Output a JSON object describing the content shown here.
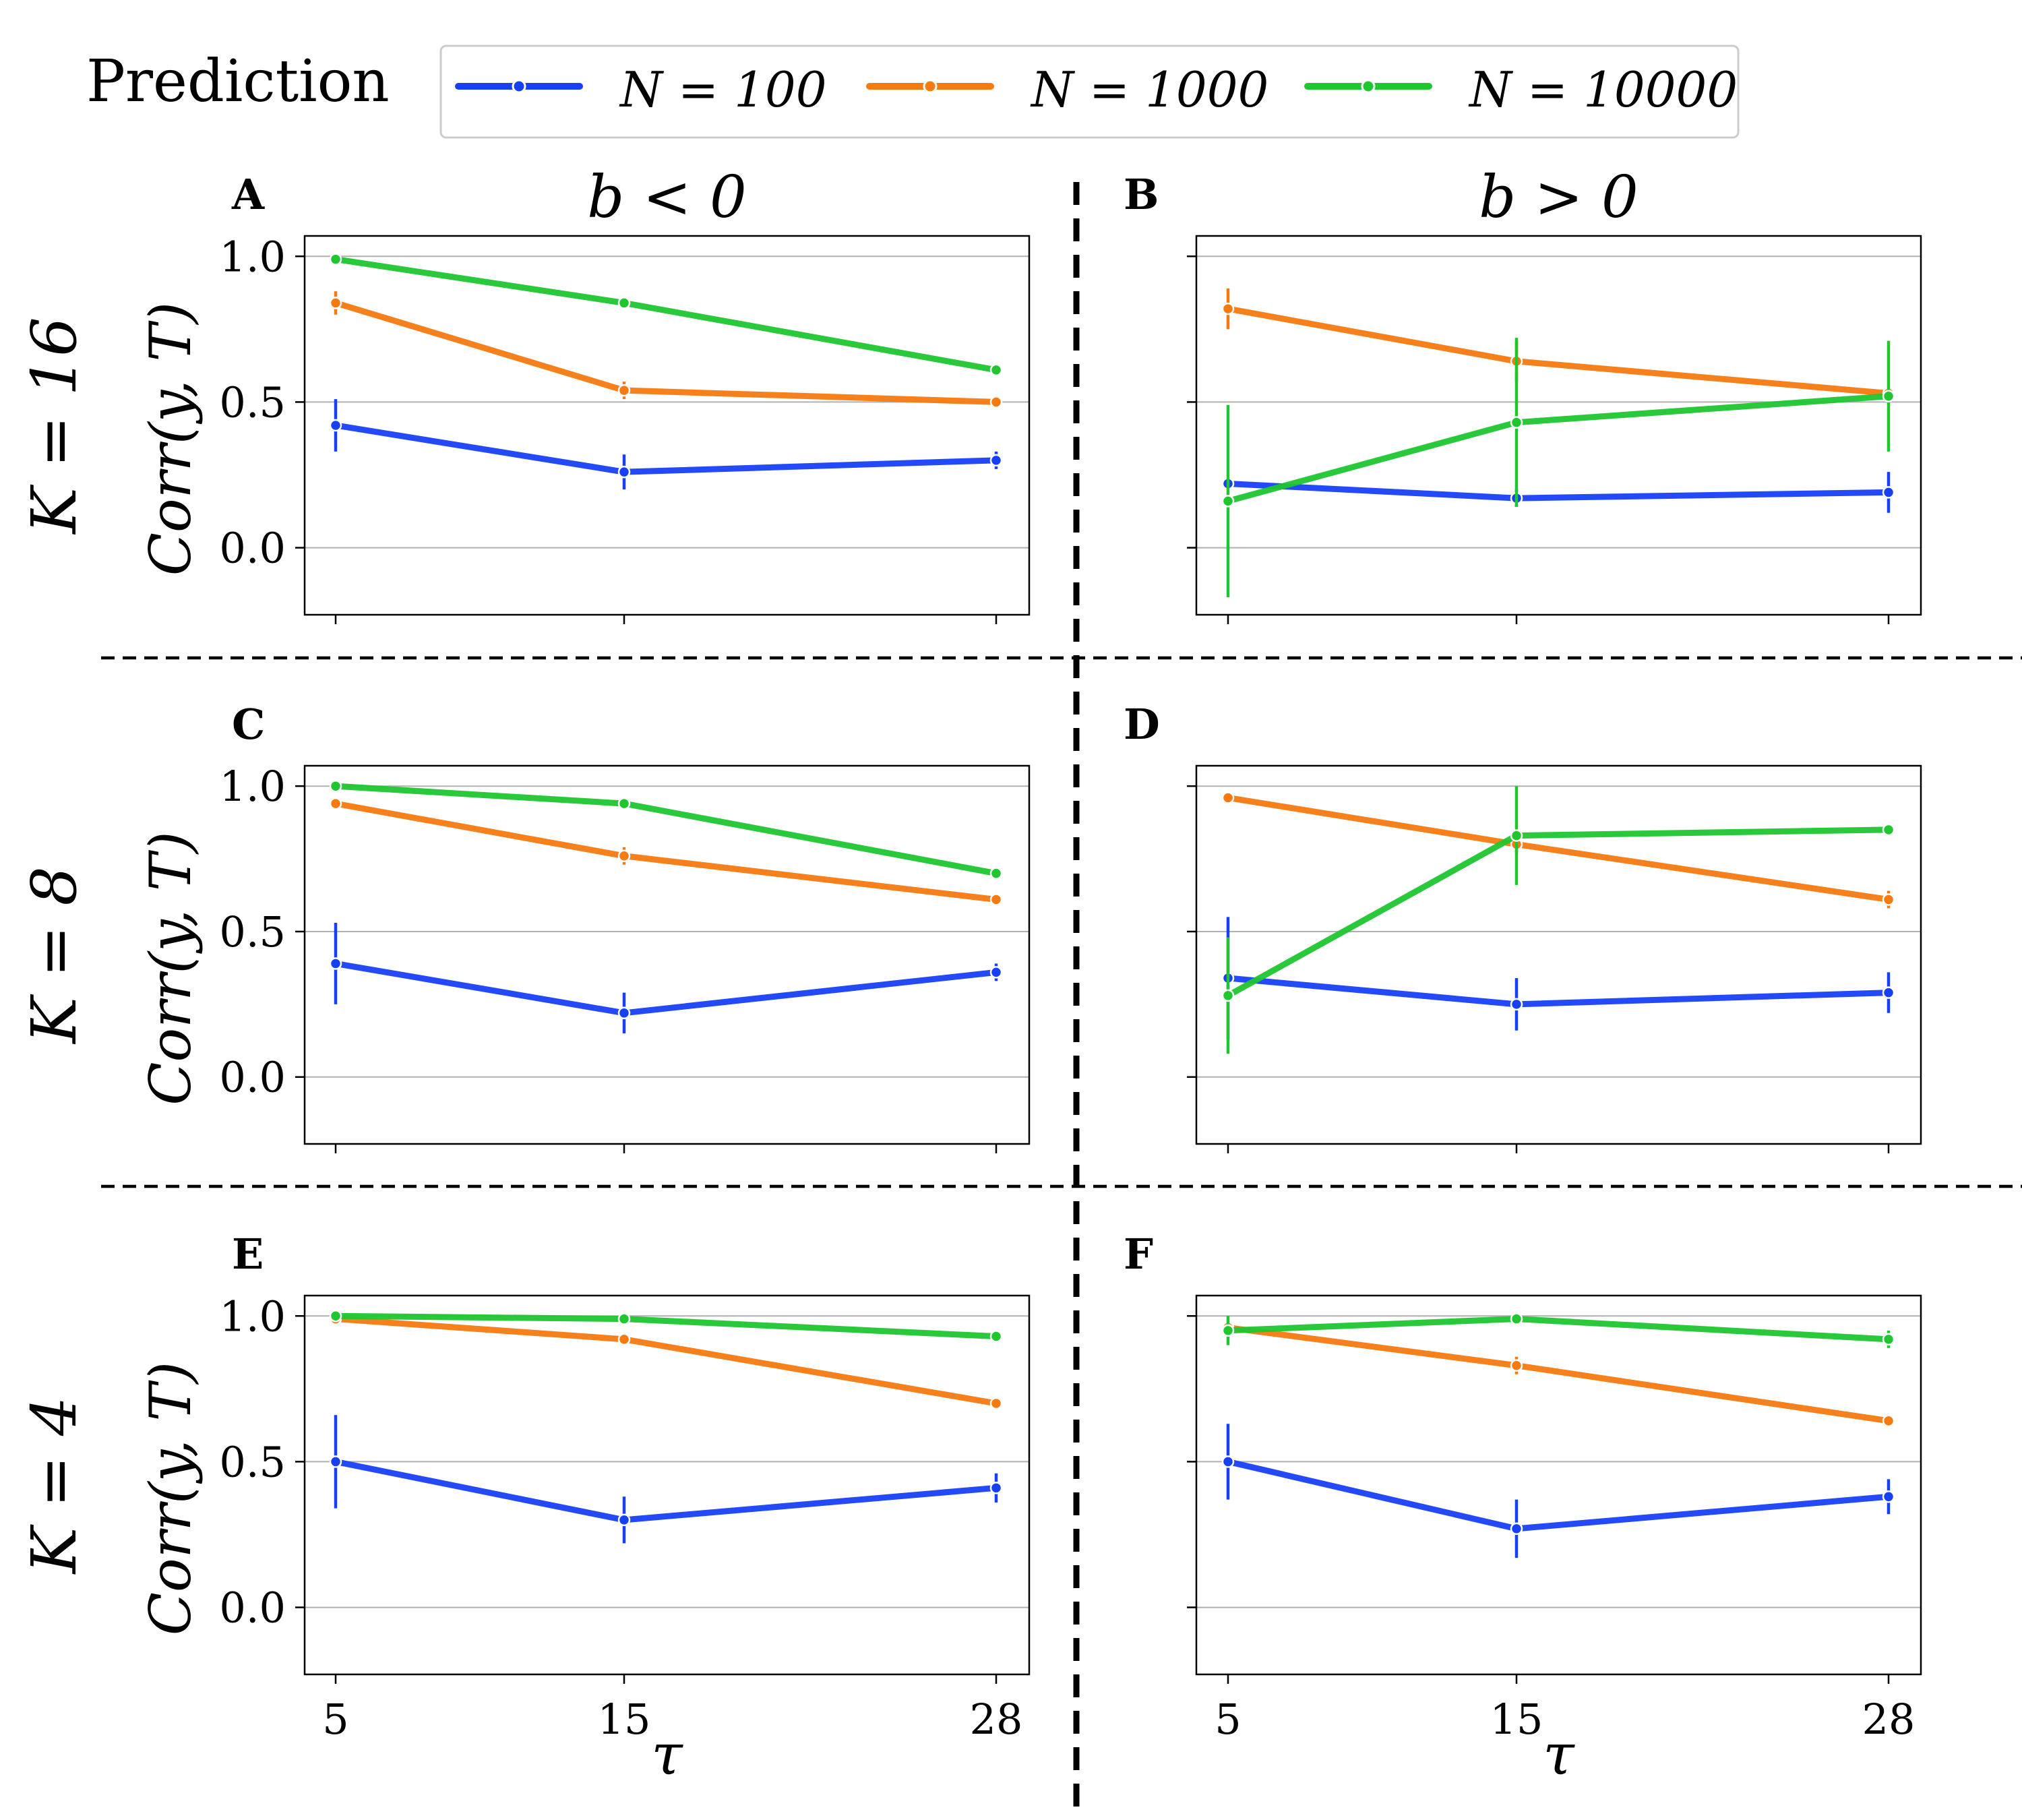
{
  "figure": {
    "legend": {
      "title": "Prediction",
      "entries": [
        {
          "label": "N = 100",
          "color": "#1740f5"
        },
        {
          "label": "N = 1000",
          "color": "#f57a10"
        },
        {
          "label": "N = 10000",
          "color": "#1fc630"
        }
      ]
    },
    "column_titles": [
      "b < 0",
      "b > 0"
    ],
    "row_titles": [
      "K = 16",
      "K = 8",
      "K = 4"
    ],
    "ylabel": "Corr(y, T)",
    "xlabel": "τ",
    "ytick_labels": [
      "1.0",
      "0.5",
      "0.0"
    ],
    "xtick_labels": [
      "5",
      "15",
      "28"
    ]
  },
  "chart_data": [
    {
      "panel": "A",
      "type": "line",
      "row_title": "K = 16",
      "column_title": "b < 0",
      "x": [
        5,
        15,
        28
      ],
      "ylim": [
        -0.23,
        1.07
      ],
      "yticks": [
        0.0,
        0.5,
        1.0
      ],
      "grid": true,
      "ylabel": "Corr(y, T)",
      "xlabel": "",
      "series": [
        {
          "name": "N = 100",
          "values": [
            0.42,
            0.26,
            0.3
          ],
          "err": [
            0.09,
            0.06,
            0.03
          ]
        },
        {
          "name": "N = 1000",
          "values": [
            0.84,
            0.54,
            0.5
          ],
          "err": [
            0.04,
            0.03,
            0.01
          ]
        },
        {
          "name": "N = 10000",
          "values": [
            0.99,
            0.84,
            0.61
          ],
          "err": [
            0.01,
            0.01,
            0.01
          ]
        }
      ]
    },
    {
      "panel": "B",
      "type": "line",
      "row_title": "K = 16",
      "column_title": "b > 0",
      "x": [
        5,
        15,
        28
      ],
      "ylim": [
        -0.23,
        1.07
      ],
      "yticks": [
        0.0,
        0.5,
        1.0
      ],
      "grid": true,
      "ylabel": "",
      "xlabel": "",
      "series": [
        {
          "name": "N = 100",
          "values": [
            0.22,
            0.17,
            0.19
          ],
          "err": [
            0.02,
            0.03,
            0.07
          ]
        },
        {
          "name": "N = 1000",
          "values": [
            0.82,
            0.64,
            0.53
          ],
          "err": [
            0.07,
            0.07,
            0.02
          ]
        },
        {
          "name": "N = 10000",
          "values": [
            0.16,
            0.43,
            0.52
          ],
          "err": [
            0.33,
            0.29,
            0.19
          ]
        }
      ]
    },
    {
      "panel": "C",
      "type": "line",
      "row_title": "K = 8",
      "column_title": "b < 0",
      "x": [
        5,
        15,
        28
      ],
      "ylim": [
        -0.23,
        1.07
      ],
      "yticks": [
        0.0,
        0.5,
        1.0
      ],
      "grid": true,
      "ylabel": "Corr(y, T)",
      "xlabel": "",
      "series": [
        {
          "name": "N = 100",
          "values": [
            0.39,
            0.22,
            0.36
          ],
          "err": [
            0.14,
            0.07,
            0.03
          ]
        },
        {
          "name": "N = 1000",
          "values": [
            0.94,
            0.76,
            0.61
          ],
          "err": [
            0.02,
            0.03,
            0.02
          ]
        },
        {
          "name": "N = 10000",
          "values": [
            1.0,
            0.94,
            0.7
          ],
          "err": [
            0.01,
            0.01,
            0.01
          ]
        }
      ]
    },
    {
      "panel": "D",
      "type": "line",
      "row_title": "K = 8",
      "column_title": "b > 0",
      "x": [
        5,
        15,
        28
      ],
      "ylim": [
        -0.23,
        1.07
      ],
      "yticks": [
        0.0,
        0.5,
        1.0
      ],
      "grid": true,
      "ylabel": "",
      "xlabel": "",
      "series": [
        {
          "name": "N = 100",
          "values": [
            0.34,
            0.25,
            0.29
          ],
          "err": [
            0.21,
            0.09,
            0.07
          ]
        },
        {
          "name": "N = 1000",
          "values": [
            0.96,
            0.8,
            0.61
          ],
          "err": [
            0.01,
            0.03,
            0.03
          ]
        },
        {
          "name": "N = 10000",
          "values": [
            0.28,
            0.83,
            0.85
          ],
          "err": [
            0.2,
            0.17,
            0.01
          ]
        }
      ]
    },
    {
      "panel": "E",
      "type": "line",
      "row_title": "K = 4",
      "column_title": "b < 0",
      "x": [
        5,
        15,
        28
      ],
      "ylim": [
        -0.23,
        1.07
      ],
      "yticks": [
        0.0,
        0.5,
        1.0
      ],
      "grid": true,
      "ylabel": "Corr(y, T)",
      "xlabel": "τ",
      "series": [
        {
          "name": "N = 100",
          "values": [
            0.5,
            0.3,
            0.41
          ],
          "err": [
            0.16,
            0.08,
            0.05
          ]
        },
        {
          "name": "N = 1000",
          "values": [
            0.99,
            0.92,
            0.7
          ],
          "err": [
            0.01,
            0.02,
            0.02
          ]
        },
        {
          "name": "N = 10000",
          "values": [
            1.0,
            0.99,
            0.93
          ],
          "err": [
            0.01,
            0.01,
            0.02
          ]
        }
      ]
    },
    {
      "panel": "F",
      "type": "line",
      "row_title": "K = 4",
      "column_title": "b > 0",
      "x": [
        5,
        15,
        28
      ],
      "ylim": [
        -0.23,
        1.07
      ],
      "yticks": [
        0.0,
        0.5,
        1.0
      ],
      "grid": true,
      "ylabel": "",
      "xlabel": "τ",
      "series": [
        {
          "name": "N = 100",
          "values": [
            0.5,
            0.27,
            0.38
          ],
          "err": [
            0.13,
            0.1,
            0.06
          ]
        },
        {
          "name": "N = 1000",
          "values": [
            0.96,
            0.83,
            0.64
          ],
          "err": [
            0.02,
            0.03,
            0.02
          ]
        },
        {
          "name": "N = 10000",
          "values": [
            0.95,
            0.99,
            0.92
          ],
          "err": [
            0.05,
            0.01,
            0.03
          ]
        }
      ]
    }
  ]
}
